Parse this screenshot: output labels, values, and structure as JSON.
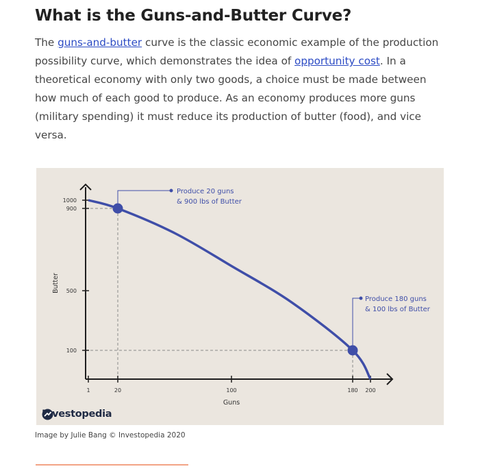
{
  "article": {
    "heading": "What is the Guns-and-Butter Curve?",
    "paragraph": {
      "part1": "The ",
      "link1": "guns-and-butter",
      "part2": " curve is the classic economic example of the production possibility curve, which demonstrates the idea of ",
      "link2": "opportunity cost",
      "part3": ". In a theoretical economy with only two goods, a choice must be made between how much of each good to produce. As an economy produces more guns (military spending) it must reduce its production of butter (food), and vice versa."
    },
    "credit": "Image by Julie Bang © Investopedia 2020"
  },
  "figure": {
    "brand": "Investopedia",
    "background_color": "#ebe6df",
    "curve_color": "#3f4ea8"
  },
  "chart_data": {
    "type": "line",
    "xlabel": "Guns",
    "ylabel": "Butter",
    "x_ticks": [
      "1",
      "20",
      "100",
      "180",
      "200"
    ],
    "y_ticks": [
      "1000",
      "900",
      "500",
      "100"
    ],
    "series": [
      {
        "x": [
          1,
          20,
          60,
          100,
          140,
          180,
          200
        ],
        "y": [
          1000,
          900,
          780,
          620,
          420,
          100,
          0
        ]
      }
    ],
    "points": [
      {
        "x": 20,
        "y": 900,
        "label_line1": "Produce 20 guns",
        "label_line2": "& 900 lbs of Butter"
      },
      {
        "x": 180,
        "y": 100,
        "label_line1": "Produce 180 guns",
        "label_line2": "& 100 lbs of Butter"
      }
    ]
  }
}
